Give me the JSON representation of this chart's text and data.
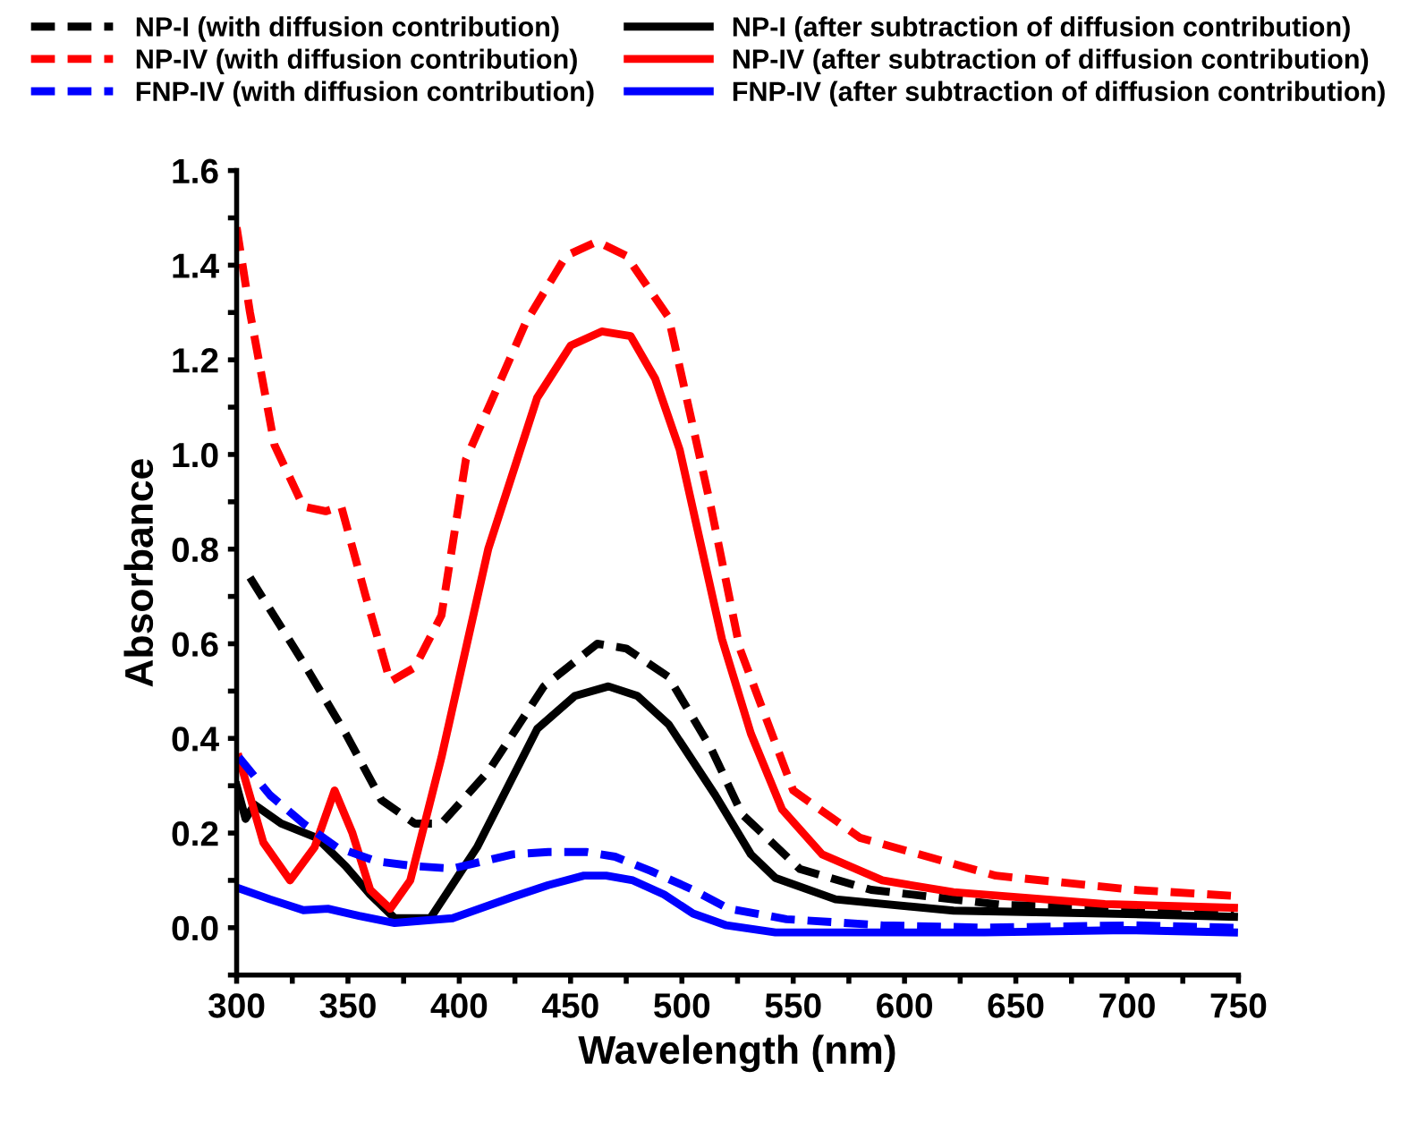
{
  "chart_data": {
    "type": "line",
    "xlabel": "Wavelength (nm)",
    "ylabel": "Absorbance",
    "xlim": [
      300,
      750
    ],
    "ylim": [
      -0.1,
      1.6
    ],
    "xticks": [
      300,
      {
        "value": 325,
        "label": null
      },
      350,
      {
        "value": 375,
        "label": null
      },
      400,
      {
        "value": 425,
        "label": null
      },
      450,
      {
        "value": 475,
        "label": null
      },
      500,
      {
        "value": 525,
        "label": null
      },
      550,
      {
        "value": 575,
        "label": null
      },
      600,
      {
        "value": 625,
        "label": null
      },
      650,
      {
        "value": 675,
        "label": null
      },
      700,
      {
        "value": 725,
        "label": null
      },
      750
    ],
    "yticks": [
      {
        "value": -0.1,
        "label": null
      },
      {
        "value": 0.0,
        "label": "0.0"
      },
      {
        "value": 0.1,
        "label": null
      },
      0.2,
      {
        "value": 0.3,
        "label": null
      },
      0.4,
      {
        "value": 0.5,
        "label": null
      },
      0.6,
      {
        "value": 0.7,
        "label": null
      },
      0.8,
      {
        "value": 0.9,
        "label": null
      },
      {
        "value": 1.0,
        "label": "1.0"
      },
      {
        "value": 1.1,
        "label": null
      },
      1.2,
      {
        "value": 1.3,
        "label": null
      },
      1.4,
      {
        "value": 1.5,
        "label": null
      },
      1.6
    ],
    "grid": false,
    "legend": "top",
    "marker": "none",
    "series": [
      {
        "name": "NP-I (with diffusion contribution)",
        "color": "#000000",
        "line_style": "dashed",
        "x": [
          306,
          330,
          349,
          365,
          380,
          392,
          413,
          438,
          462,
          475,
          494,
          513,
          527,
          553,
          585,
          644,
          703,
          748
        ],
        "values": [
          0.74,
          0.56,
          0.41,
          0.27,
          0.22,
          0.22,
          0.33,
          0.51,
          0.6,
          0.59,
          0.53,
          0.38,
          0.24,
          0.124,
          0.08,
          0.048,
          0.042,
          0.037
        ]
      },
      {
        "name": "NP-I (after subtraction of diffusion contribution)",
        "color": "#000000",
        "line_style": "solid",
        "x": [
          300,
          304,
          308,
          320,
          336,
          349,
          360,
          371,
          387,
          408,
          435,
          452,
          467,
          480,
          494,
          515,
          531,
          542,
          569,
          622,
          690,
          748
        ],
        "values": [
          0.3,
          0.23,
          0.26,
          0.22,
          0.19,
          0.13,
          0.07,
          0.02,
          0.02,
          0.17,
          0.42,
          0.49,
          0.51,
          0.49,
          0.43,
          0.28,
          0.155,
          0.105,
          0.06,
          0.036,
          0.03,
          0.023
        ]
      },
      {
        "name": "NP-IV (with diffusion contribution)",
        "color": "#ff0000",
        "line_style": "dashed",
        "x": [
          300,
          306,
          317,
          330,
          340,
          347,
          358,
          369,
          380,
          392,
          403,
          430,
          448,
          462,
          475,
          494,
          513,
          526,
          550,
          580,
          641,
          703,
          748
        ],
        "values": [
          1.48,
          1.3,
          1.02,
          0.89,
          0.88,
          0.89,
          0.7,
          0.52,
          0.55,
          0.66,
          0.99,
          1.28,
          1.42,
          1.45,
          1.42,
          1.29,
          0.89,
          0.59,
          0.29,
          0.19,
          0.11,
          0.08,
          0.067
        ]
      },
      {
        "name": "NP-IV (after subtraction of diffusion contribution)",
        "color": "#ff0000",
        "line_style": "solid",
        "x": [
          301,
          312,
          324,
          335,
          344,
          352,
          360,
          369,
          378,
          392,
          413,
          435,
          450,
          464,
          477,
          488,
          499,
          518,
          531,
          545,
          563,
          590,
          622,
          690,
          748
        ],
        "values": [
          0.36,
          0.18,
          0.1,
          0.17,
          0.29,
          0.2,
          0.08,
          0.04,
          0.1,
          0.36,
          0.8,
          1.12,
          1.23,
          1.26,
          1.25,
          1.16,
          1.01,
          0.61,
          0.41,
          0.25,
          0.155,
          0.1,
          0.075,
          0.05,
          0.042
        ]
      },
      {
        "name": "FNP-IV (with diffusion contribution)",
        "color": "#0000ff",
        "line_style": "dashed",
        "x": [
          301,
          315,
          330,
          345,
          363,
          380,
          397,
          424,
          440,
          457,
          470,
          486,
          505,
          521,
          547,
          590,
          636,
          703,
          748
        ],
        "values": [
          0.36,
          0.28,
          0.22,
          0.17,
          0.14,
          0.13,
          0.125,
          0.155,
          0.16,
          0.16,
          0.15,
          0.12,
          0.08,
          0.04,
          0.018,
          0.005,
          0.0,
          0.005,
          0.0
        ]
      },
      {
        "name": "FNP-IV (after subtraction of diffusion contribution)",
        "color": "#0000ff",
        "line_style": "solid",
        "x": [
          300,
          315,
          330,
          341,
          355,
          371,
          397,
          424,
          440,
          456,
          466,
          478,
          492,
          505,
          520,
          542,
          590,
          636,
          700,
          748
        ],
        "values": [
          0.085,
          0.06,
          0.037,
          0.04,
          0.025,
          0.01,
          0.02,
          0.065,
          0.09,
          0.11,
          0.11,
          0.1,
          0.07,
          0.03,
          0.005,
          -0.01,
          -0.01,
          -0.01,
          -0.005,
          -0.01
        ]
      }
    ]
  }
}
